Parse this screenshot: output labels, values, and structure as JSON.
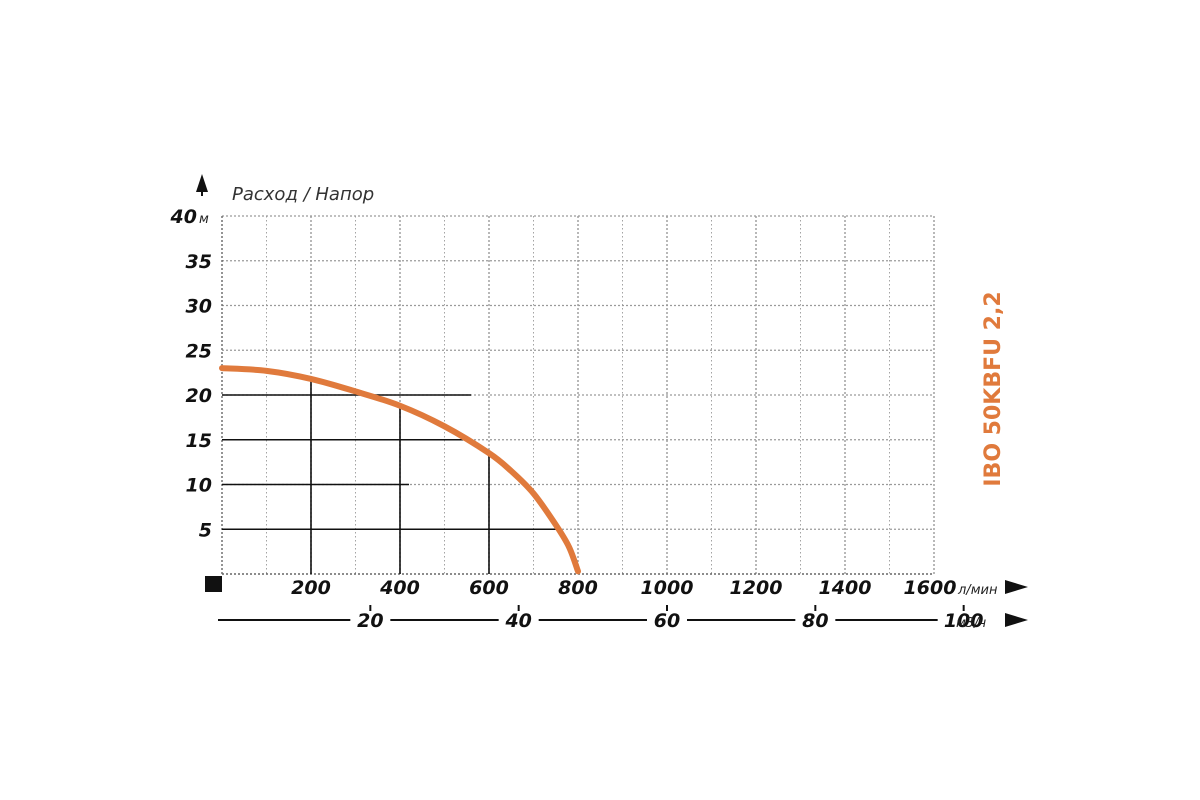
{
  "chart_data": {
    "type": "line",
    "title": "IBO 50KBFU 2,2",
    "ylabel": "Расход / Напор",
    "y_unit": "м",
    "x_unit": "л/мин",
    "x2_unit": "м3/ч",
    "xlim": [
      0,
      1600
    ],
    "ylim": [
      0,
      40
    ],
    "x_ticks": [
      "200",
      "400",
      "600",
      "800",
      "1000",
      "1200",
      "1400",
      "1600"
    ],
    "y_ticks": [
      "5",
      "10",
      "15",
      "20",
      "25",
      "30",
      "35",
      "40"
    ],
    "x2_ticks": [
      "20",
      "40",
      "60",
      "80",
      "100"
    ],
    "grid": true,
    "series": [
      {
        "x": [
          0,
          100,
          200,
          300,
          400,
          500,
          600,
          650,
          700,
          750,
          780,
          800
        ],
        "y": [
          23,
          22.7,
          21.8,
          20.4,
          18.8,
          16.5,
          13.5,
          11.5,
          9,
          5.5,
          3,
          0.3
        ]
      }
    ],
    "highlight_points": [
      {
        "x": 200,
        "y": 20
      },
      {
        "x": 400,
        "y": 15
      },
      {
        "x": 600,
        "y": 10
      },
      {
        "x": 800,
        "y": 5
      }
    ],
    "colors": {
      "curve": "#e07a3c",
      "title": "#e07a3c",
      "grid": "#9a9a9a",
      "axis_text": "#111111"
    }
  }
}
